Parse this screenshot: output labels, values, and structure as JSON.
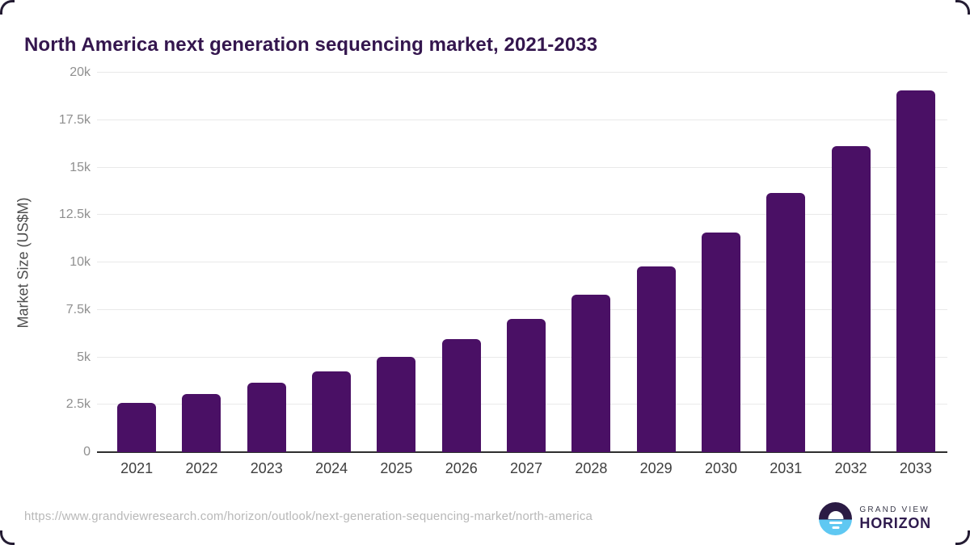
{
  "header": {
    "title": "North America next generation sequencing market, 2021-2033"
  },
  "chart_data": {
    "type": "bar",
    "title": "North America next generation sequencing market, 2021-2033",
    "categories": [
      "2021",
      "2022",
      "2023",
      "2024",
      "2025",
      "2026",
      "2027",
      "2028",
      "2029",
      "2030",
      "2031",
      "2032",
      "2033"
    ],
    "values": [
      2580,
      3050,
      3640,
      4270,
      5020,
      5940,
      7010,
      8290,
      9800,
      11570,
      13670,
      16120,
      19060
    ],
    "xlabel": "",
    "ylabel": "Market Size (US$M)",
    "ylim": [
      0,
      20000
    ],
    "yticks": [
      {
        "value": 0,
        "label": "0"
      },
      {
        "value": 2500,
        "label": "2.5k"
      },
      {
        "value": 5000,
        "label": "5k"
      },
      {
        "value": 7500,
        "label": "7.5k"
      },
      {
        "value": 10000,
        "label": "10k"
      },
      {
        "value": 12500,
        "label": "12.5k"
      },
      {
        "value": 15000,
        "label": "15k"
      },
      {
        "value": 17500,
        "label": "17.5k"
      },
      {
        "value": 20000,
        "label": "20k"
      }
    ],
    "grid": true,
    "legend": false,
    "bar_color": "#4a1065"
  },
  "footer": {
    "source_url": "https://www.grandviewresearch.com/horizon/outlook/next-generation-sequencing-market/north-america",
    "logo": {
      "line1": "GRAND VIEW",
      "line2": "HORIZON"
    }
  },
  "colors": {
    "title": "#34164e",
    "bar": "#4a1065",
    "gridline": "#e9e9e9",
    "axis_line": "#2e2e2e",
    "logo_top": "#2b1b44",
    "logo_bottom": "#5fc8f2"
  }
}
